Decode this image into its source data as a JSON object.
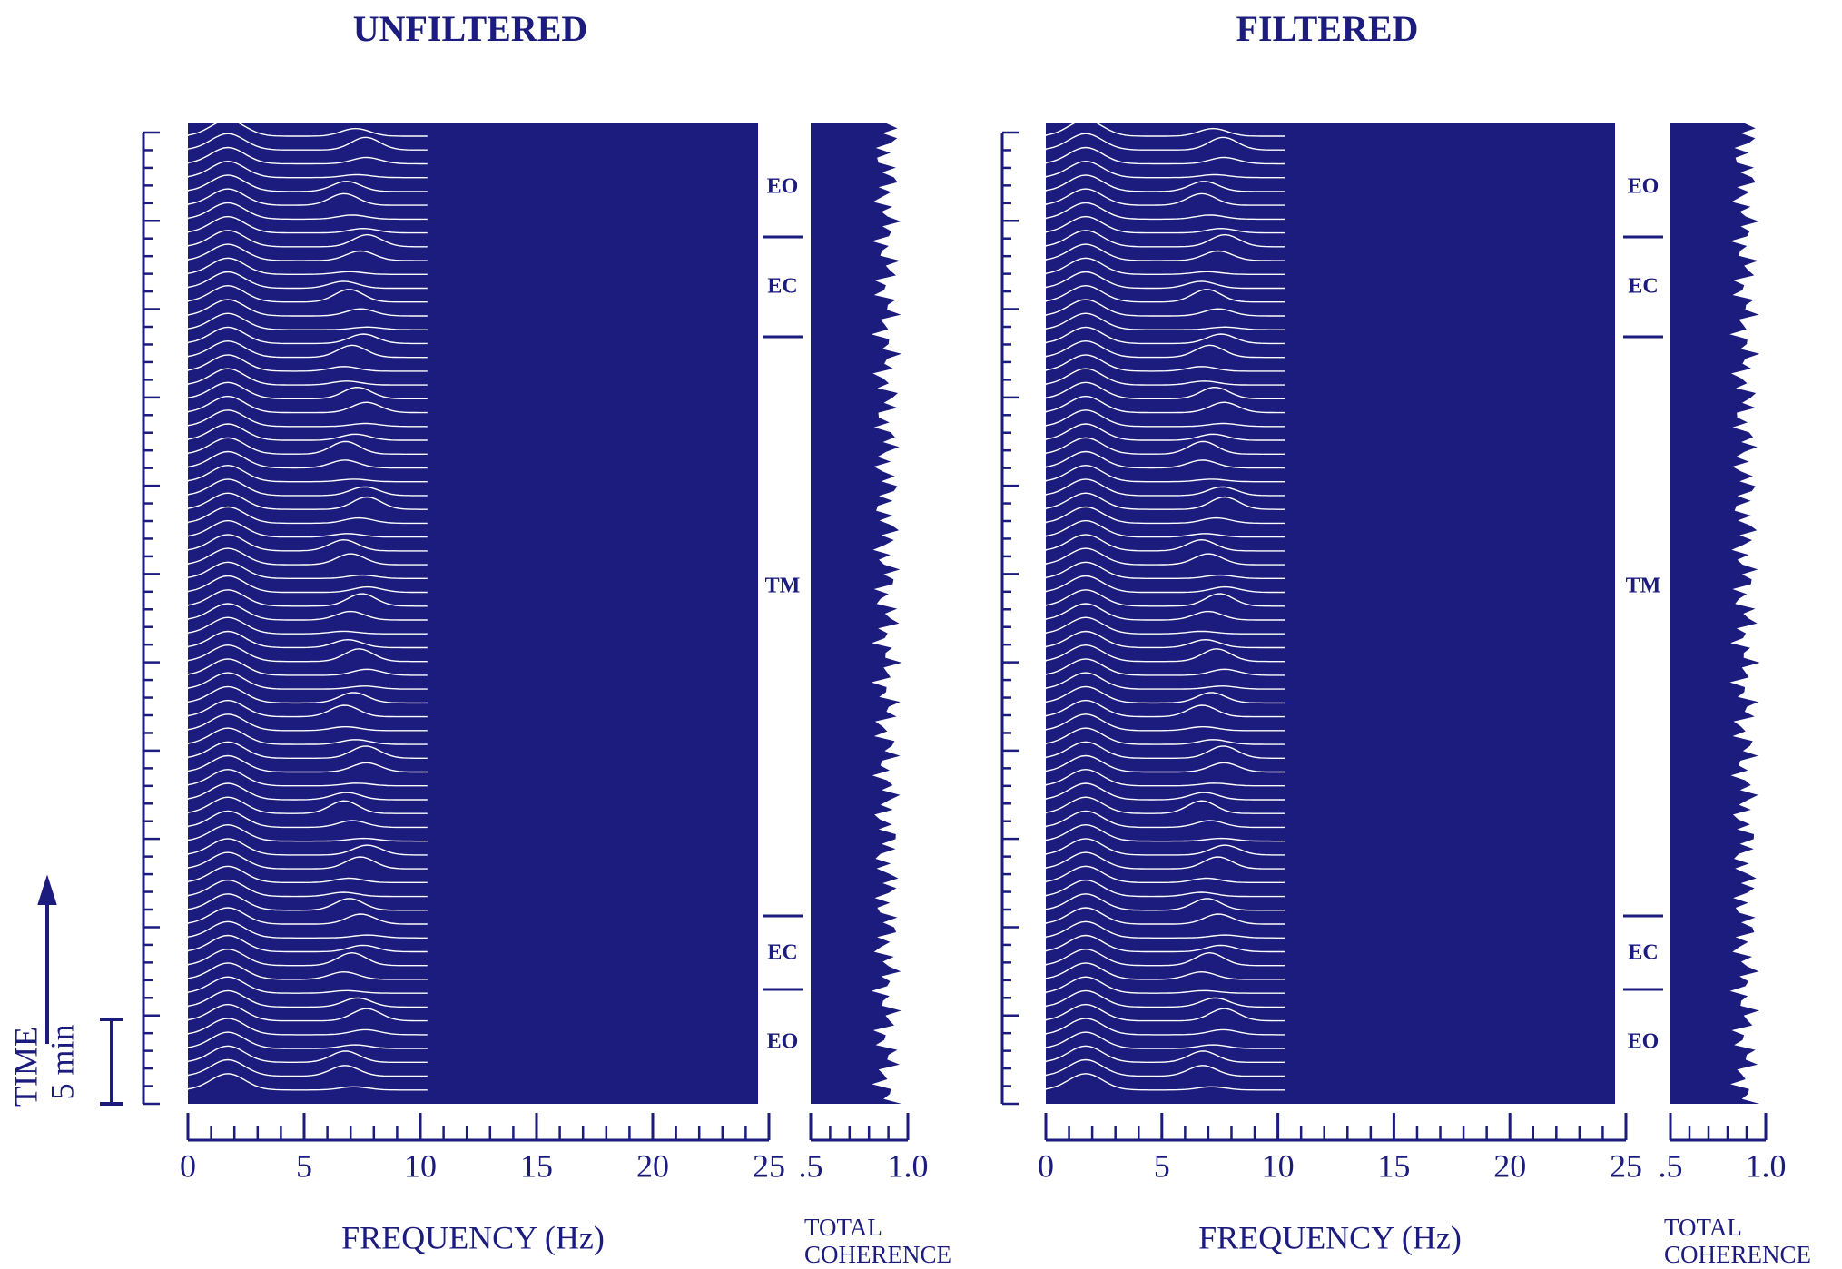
{
  "chart_data": [
    {
      "type": "waterfall",
      "title": "UNFILTERED",
      "xlabel": "FREQUENCY (Hz)",
      "xlim": [
        0,
        25
      ],
      "xticks": [
        0,
        5,
        10,
        15,
        20,
        25
      ],
      "coherence": {
        "label": [
          "TOTAL",
          "COHERENCE"
        ],
        "xlim": [
          0.5,
          1.0
        ],
        "xticks": [
          {
            "value": 0.5,
            "label": ".5"
          },
          {
            "value": 1.0,
            "label": "1.0"
          }
        ]
      },
      "segments": [
        "EO",
        "EC",
        "TM",
        "EC",
        "EO"
      ]
    },
    {
      "type": "waterfall",
      "title": "FILTERED",
      "xlabel": "FREQUENCY (Hz)",
      "xlim": [
        0,
        25
      ],
      "xticks": [
        0,
        5,
        10,
        15,
        20,
        25
      ],
      "coherence": {
        "label": [
          "TOTAL",
          "COHERENCE"
        ],
        "xlim": [
          0.5,
          1.0
        ],
        "xticks": [
          {
            "value": 0.5,
            "label": ".5"
          },
          {
            "value": 1.0,
            "label": "1.0"
          }
        ]
      },
      "segments": [
        "EO",
        "EC",
        "TM",
        "EC",
        "EO"
      ]
    }
  ],
  "time_axis": {
    "label": "TIME",
    "scale_label": "5 min"
  }
}
